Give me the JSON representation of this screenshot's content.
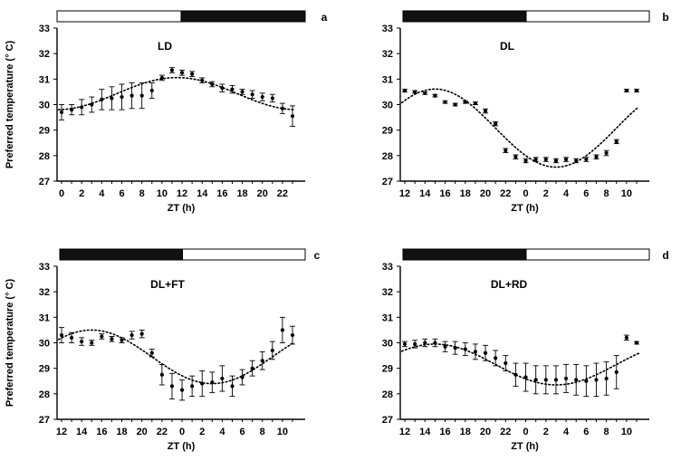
{
  "chart_data": [
    {
      "panel": "a",
      "title": "LD",
      "type": "scatter",
      "xlabel": "ZT (h)",
      "ylabel": "Preferred temperature (° C)",
      "ylim": [
        27,
        33
      ],
      "yticks": [
        27,
        28,
        29,
        30,
        31,
        32,
        33
      ],
      "xticks": [
        "0",
        "2",
        "4",
        "6",
        "8",
        "10",
        "12",
        "14",
        "16",
        "18",
        "20",
        "22"
      ],
      "light_bar": [
        "light",
        "dark"
      ],
      "x": [
        0,
        1,
        2,
        3,
        4,
        5,
        6,
        7,
        8,
        9,
        10,
        11,
        12,
        13,
        14,
        15,
        16,
        17,
        18,
        19,
        20,
        21,
        22,
        23
      ],
      "values": [
        29.7,
        29.8,
        29.9,
        30.0,
        30.2,
        30.25,
        30.3,
        30.35,
        30.35,
        30.55,
        31.05,
        31.35,
        31.25,
        31.2,
        30.95,
        30.8,
        30.65,
        30.6,
        30.5,
        30.4,
        30.3,
        30.25,
        29.85,
        29.55
      ],
      "errors": [
        0.3,
        0.2,
        0.3,
        0.3,
        0.4,
        0.45,
        0.5,
        0.5,
        0.5,
        0.3,
        0.1,
        0.1,
        0.1,
        0.1,
        0.1,
        0.1,
        0.15,
        0.15,
        0.1,
        0.15,
        0.15,
        0.15,
        0.2,
        0.4
      ],
      "fit": {
        "mean": 30.43,
        "amplitude": 0.63,
        "peak": 11.5
      }
    },
    {
      "panel": "b",
      "title": "DL",
      "type": "scatter",
      "xlabel": "ZT (h)",
      "ylim": [
        27,
        33
      ],
      "yticks": [
        27,
        28,
        29,
        30,
        31,
        32,
        33
      ],
      "xticks": [
        "12",
        "14",
        "16",
        "18",
        "20",
        "22",
        "0",
        "2",
        "4",
        "6",
        "8",
        "10"
      ],
      "light_bar": [
        "dark",
        "light"
      ],
      "x": [
        0,
        1,
        2,
        3,
        4,
        5,
        6,
        7,
        8,
        9,
        10,
        11,
        12,
        13,
        14,
        15,
        16,
        17,
        18,
        19,
        20,
        21,
        22,
        23
      ],
      "values": [
        30.55,
        30.5,
        30.45,
        30.35,
        30.1,
        30.0,
        30.1,
        30.05,
        29.75,
        29.25,
        28.2,
        27.95,
        27.8,
        27.85,
        27.85,
        27.8,
        27.85,
        27.8,
        27.85,
        27.95,
        28.1,
        28.55,
        30.55,
        30.55
      ],
      "errors": [
        0.05,
        0.05,
        0.05,
        0.05,
        0.05,
        0.05,
        0.05,
        0.05,
        0.08,
        0.08,
        0.08,
        0.08,
        0.08,
        0.08,
        0.08,
        0.08,
        0.08,
        0.08,
        0.08,
        0.08,
        0.1,
        0.08,
        0.05,
        0.05
      ],
      "fit": {
        "mean": 29.08,
        "amplitude": 1.53,
        "peak": 3.0
      }
    },
    {
      "panel": "c",
      "title": "DL+FT",
      "type": "scatter",
      "xlabel": "ZT (h)",
      "ylabel": "Preferred temperature (° C)",
      "ylim": [
        27,
        33
      ],
      "yticks": [
        27,
        28,
        29,
        30,
        31,
        32,
        33
      ],
      "xticks": [
        "12",
        "14",
        "16",
        "18",
        "20",
        "22",
        "0",
        "2",
        "4",
        "6",
        "8",
        "10"
      ],
      "light_bar": [
        "dark",
        "light"
      ],
      "x": [
        0,
        1,
        2,
        3,
        4,
        5,
        6,
        7,
        8,
        9,
        10,
        11,
        12,
        13,
        14,
        15,
        16,
        17,
        18,
        19,
        20,
        21,
        22,
        23
      ],
      "values": [
        30.3,
        30.2,
        30.05,
        30.0,
        30.25,
        30.15,
        30.1,
        30.3,
        30.35,
        29.6,
        28.75,
        28.3,
        28.15,
        28.3,
        28.4,
        28.45,
        28.6,
        28.3,
        28.65,
        29.0,
        29.3,
        29.7,
        30.5,
        30.3
      ],
      "errors": [
        0.3,
        0.2,
        0.15,
        0.1,
        0.1,
        0.1,
        0.1,
        0.15,
        0.15,
        0.15,
        0.4,
        0.5,
        0.4,
        0.4,
        0.5,
        0.4,
        0.5,
        0.4,
        0.3,
        0.3,
        0.35,
        0.35,
        0.5,
        0.35
      ],
      "fit": {
        "mean": 29.45,
        "amplitude": 1.05,
        "peak": 3.0
      }
    },
    {
      "panel": "d",
      "title": "DL+RD",
      "type": "scatter",
      "xlabel": "ZT (h)",
      "ylim": [
        27,
        33
      ],
      "yticks": [
        27,
        28,
        29,
        30,
        31,
        32,
        33
      ],
      "xticks": [
        "12",
        "14",
        "16",
        "18",
        "20",
        "22",
        "0",
        "2",
        "4",
        "6",
        "8",
        "10"
      ],
      "light_bar": [
        "dark",
        "light"
      ],
      "x": [
        0,
        1,
        2,
        3,
        4,
        5,
        6,
        7,
        8,
        9,
        10,
        11,
        12,
        13,
        14,
        15,
        16,
        17,
        18,
        19,
        20,
        21,
        22,
        23
      ],
      "values": [
        29.95,
        29.95,
        30.0,
        30.0,
        29.85,
        29.8,
        29.75,
        29.65,
        29.6,
        29.4,
        29.2,
        28.75,
        28.65,
        28.55,
        28.55,
        28.55,
        28.6,
        28.55,
        28.5,
        28.55,
        28.6,
        28.85,
        30.2,
        30.0
      ],
      "errors": [
        0.1,
        0.15,
        0.15,
        0.15,
        0.2,
        0.25,
        0.25,
        0.3,
        0.3,
        0.3,
        0.3,
        0.45,
        0.55,
        0.55,
        0.55,
        0.55,
        0.55,
        0.6,
        0.6,
        0.65,
        0.65,
        0.65,
        0.1,
        0.05
      ],
      "fit": {
        "mean": 29.15,
        "amplitude": 0.8,
        "peak": 3.0
      }
    }
  ]
}
